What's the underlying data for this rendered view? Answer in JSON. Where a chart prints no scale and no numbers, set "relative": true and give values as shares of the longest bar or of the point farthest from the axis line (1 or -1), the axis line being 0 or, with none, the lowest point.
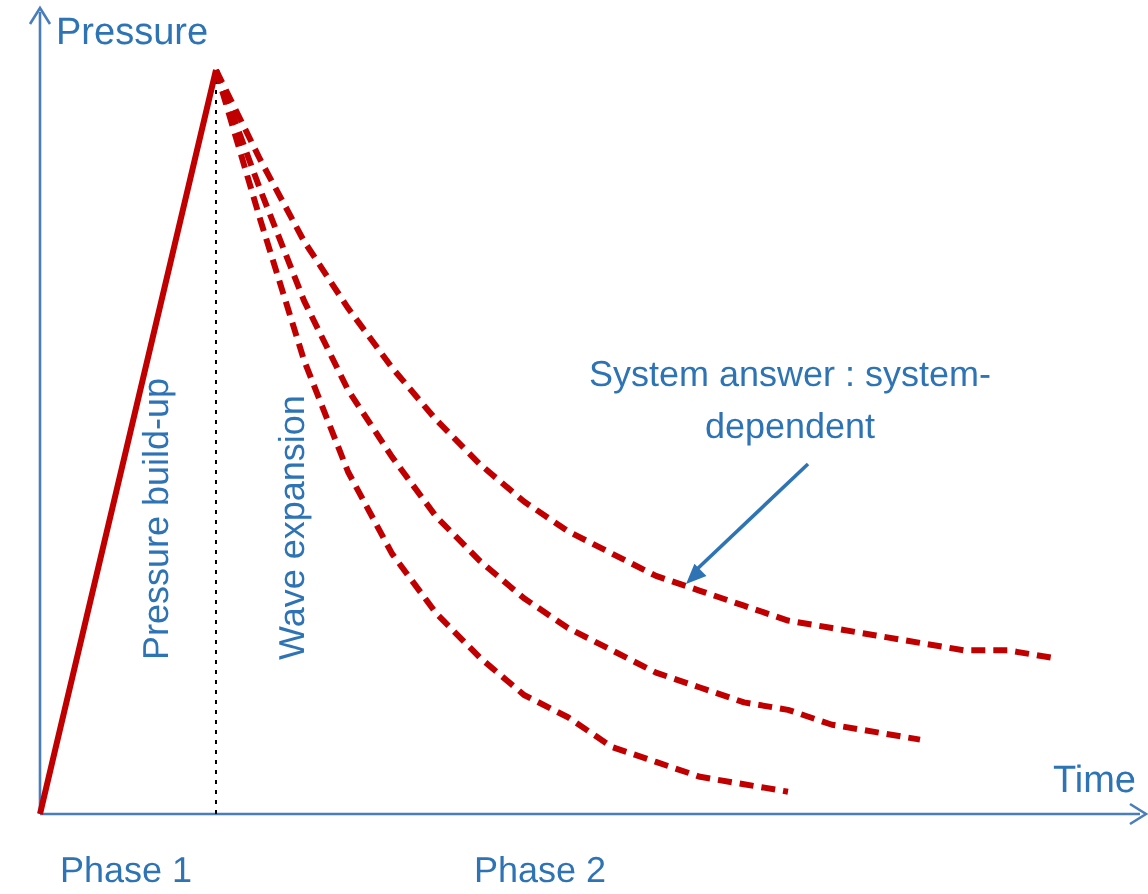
{
  "chart_data": {
    "type": "line",
    "relative": true,
    "xlabel": "Time",
    "ylabel": "Pressure",
    "categories": [
      null,
      null,
      null,
      null,
      null,
      null,
      null,
      null,
      null,
      null,
      null,
      null,
      null,
      null,
      null,
      null,
      null,
      null,
      null,
      null,
      null,
      null,
      null,
      null
    ],
    "series": [
      {
        "color": "#c00000",
        "line_style": "solid",
        "values": [
          0,
          0.25,
          0.5,
          0.75,
          1,
          null,
          null,
          null,
          null,
          null,
          null,
          null,
          null,
          null,
          null,
          null,
          null,
          null,
          null,
          null,
          null,
          null,
          null,
          null
        ]
      },
      {
        "color": "#c00000",
        "line_style": "dashed",
        "values": [
          null,
          null,
          null,
          null,
          1,
          0.88,
          0.77,
          0.68,
          0.6,
          0.53,
          0.47,
          0.42,
          0.38,
          0.35,
          0.32,
          0.3,
          0.28,
          0.26,
          0.25,
          0.24,
          0.23,
          0.22,
          0.22,
          0.21
        ]
      },
      {
        "color": "#c00000",
        "line_style": "dashed",
        "values": [
          null,
          null,
          null,
          null,
          1,
          0.84,
          0.69,
          0.57,
          0.48,
          0.4,
          0.34,
          0.29,
          0.25,
          0.22,
          0.19,
          0.17,
          0.15,
          0.14,
          0.12,
          0.11,
          0.1,
          null,
          null,
          null
        ]
      },
      {
        "color": "#c00000",
        "line_style": "dashed",
        "values": [
          null,
          null,
          null,
          null,
          1,
          0.8,
          0.61,
          0.46,
          0.35,
          0.27,
          0.21,
          0.16,
          0.13,
          0.09,
          0.07,
          0.05,
          0.04,
          0.03,
          null,
          null,
          null,
          null,
          null,
          null
        ]
      }
    ],
    "annotations": [
      "Phase 1",
      "Phase 2",
      "Pressure  build-up",
      "Wave expansion",
      "System answer : system-\ndependent"
    ]
  }
}
